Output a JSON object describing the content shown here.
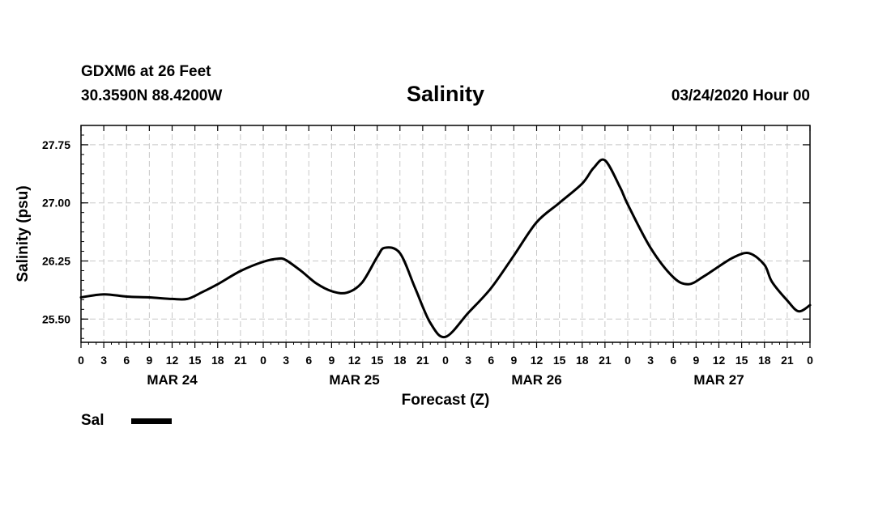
{
  "header": {
    "station": "GDXM6 at 26 Feet",
    "location": "30.3590N 88.4200W",
    "title": "Salinity",
    "datetime": "03/24/2020 Hour 00"
  },
  "legend": {
    "label": "Sal"
  },
  "chart_data": {
    "type": "line",
    "title": "Salinity",
    "xlabel": "Forecast (Z)",
    "ylabel": "Salinity (psu)",
    "x_unit": "hours",
    "xlim": [
      0,
      96
    ],
    "ylim": [
      25.2,
      28.0
    ],
    "y_ticks": [
      "25.50",
      "26.25",
      "27.00",
      "27.75"
    ],
    "y_tick_values": [
      25.5,
      26.25,
      27.0,
      27.75
    ],
    "x_tick_labels": [
      "0",
      "3",
      "6",
      "9",
      "12",
      "15",
      "18",
      "21",
      "0",
      "3",
      "6",
      "9",
      "12",
      "15",
      "18",
      "21",
      "0",
      "3",
      "6",
      "9",
      "12",
      "15",
      "18",
      "21",
      "0",
      "3",
      "6",
      "9",
      "12",
      "15",
      "18",
      "21",
      "0"
    ],
    "day_labels": [
      "MAR 24",
      "MAR 25",
      "MAR 26",
      "MAR 27"
    ],
    "grid": true,
    "legend_position": "bottom-left",
    "series": [
      {
        "name": "Sal",
        "color": "#000000",
        "x": [
          0,
          3,
          6,
          9,
          12,
          14,
          16,
          18,
          21,
          24,
          26,
          27,
          29,
          31,
          33,
          35,
          37,
          39,
          40,
          42,
          44,
          46,
          48,
          51,
          54,
          57,
          60,
          63,
          66,
          67.5,
          69,
          71,
          72,
          75,
          78,
          80,
          82,
          84,
          86,
          88,
          90,
          91,
          93,
          94.5,
          96
        ],
        "y": [
          25.78,
          25.82,
          25.79,
          25.78,
          25.76,
          25.76,
          25.85,
          25.95,
          26.12,
          26.24,
          26.28,
          26.26,
          26.12,
          25.96,
          25.86,
          25.84,
          25.97,
          26.3,
          26.42,
          26.35,
          25.9,
          25.45,
          25.27,
          25.58,
          25.9,
          26.32,
          26.75,
          27.0,
          27.25,
          27.45,
          27.55,
          27.2,
          26.98,
          26.42,
          26.04,
          25.95,
          26.05,
          26.18,
          26.3,
          26.35,
          26.2,
          25.98,
          25.74,
          25.6,
          25.68
        ]
      }
    ]
  }
}
